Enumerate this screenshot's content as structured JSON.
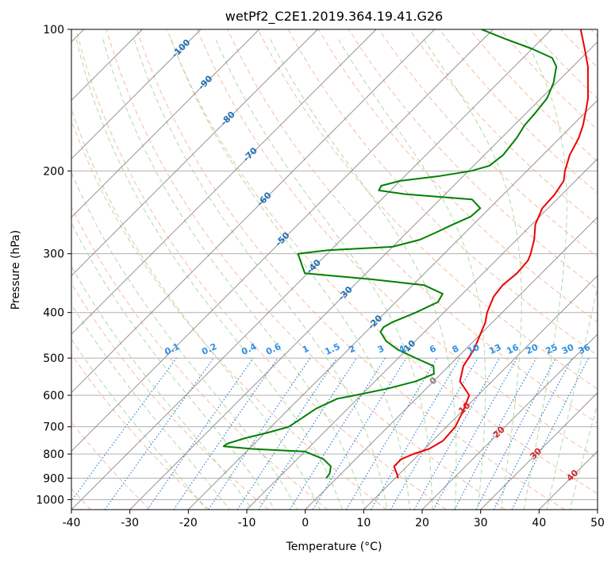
{
  "chart_data": {
    "type": "skew-t",
    "title": "wetPf2_C2E1.2019.364.19.41.G26",
    "xlabel": "Temperature (°C)",
    "ylabel": "Pressure (hPa)",
    "xlim": [
      -40,
      50
    ],
    "ylim": [
      1050,
      100
    ],
    "y_scale": "log",
    "x_ticks": [
      -40,
      -30,
      -20,
      -10,
      0,
      10,
      20,
      30,
      40,
      50
    ],
    "y_ticks": [
      100,
      200,
      300,
      400,
      500,
      600,
      700,
      800,
      900,
      1000
    ],
    "grid": true,
    "colors": {
      "temperature": "#ee0000",
      "dewpoint": "#008000",
      "dry_adiabat": "#f4a582",
      "moist_adiabat": "#a6d69a",
      "mixing_ratio": "#1f78d1",
      "skewed_isotherm": "#888888",
      "isotherm_label_blue": "#1f6fb4",
      "isotherm_label_red": "#d62728",
      "mixing_label": "#2e8fe6"
    },
    "series": [
      {
        "name": "temperature",
        "points": [
          {
            "p": 900,
            "t": 10.5
          },
          {
            "p": 880,
            "t": 9.5
          },
          {
            "p": 850,
            "t": 7.8
          },
          {
            "p": 820,
            "t": 7.8
          },
          {
            "p": 800,
            "t": 9.0
          },
          {
            "p": 780,
            "t": 10.8
          },
          {
            "p": 750,
            "t": 11.8
          },
          {
            "p": 700,
            "t": 11.5
          },
          {
            "p": 650,
            "t": 10.2
          },
          {
            "p": 600,
            "t": 8.5
          },
          {
            "p": 560,
            "t": 4.5
          },
          {
            "p": 520,
            "t": 2.5
          },
          {
            "p": 480,
            "t": 1.5
          },
          {
            "p": 450,
            "t": 0.2
          },
          {
            "p": 420,
            "t": -1.2
          },
          {
            "p": 400,
            "t": -2.6
          },
          {
            "p": 370,
            "t": -4.2
          },
          {
            "p": 350,
            "t": -4.6
          },
          {
            "p": 330,
            "t": -4.2
          },
          {
            "p": 310,
            "t": -4.5
          },
          {
            "p": 300,
            "t": -5.2
          },
          {
            "p": 280,
            "t": -7.0
          },
          {
            "p": 260,
            "t": -9.4
          },
          {
            "p": 240,
            "t": -11.0
          },
          {
            "p": 225,
            "t": -11.2
          },
          {
            "p": 210,
            "t": -12.0
          },
          {
            "p": 200,
            "t": -13.5
          },
          {
            "p": 185,
            "t": -15.4
          },
          {
            "p": 170,
            "t": -16.8
          },
          {
            "p": 160,
            "t": -18.2
          },
          {
            "p": 150,
            "t": -20.0
          },
          {
            "p": 140,
            "t": -22.0
          },
          {
            "p": 130,
            "t": -24.6
          },
          {
            "p": 120,
            "t": -27.4
          },
          {
            "p": 110,
            "t": -31.0
          },
          {
            "p": 100,
            "t": -35.0
          }
        ]
      },
      {
        "name": "dewpoint",
        "points": [
          {
            "p": 900,
            "t": -1.8
          },
          {
            "p": 880,
            "t": -2.0
          },
          {
            "p": 850,
            "t": -3.0
          },
          {
            "p": 820,
            "t": -5.5
          },
          {
            "p": 790,
            "t": -10.0
          },
          {
            "p": 780,
            "t": -19.5
          },
          {
            "p": 770,
            "t": -24.8
          },
          {
            "p": 760,
            "t": -24.6
          },
          {
            "p": 740,
            "t": -22.5
          },
          {
            "p": 720,
            "t": -19.5
          },
          {
            "p": 700,
            "t": -17.0
          },
          {
            "p": 670,
            "t": -16.2
          },
          {
            "p": 640,
            "t": -15.4
          },
          {
            "p": 610,
            "t": -13.5
          },
          {
            "p": 600,
            "t": -11.0
          },
          {
            "p": 580,
            "t": -6.5
          },
          {
            "p": 560,
            "t": -3.0
          },
          {
            "p": 540,
            "t": -1.2
          },
          {
            "p": 520,
            "t": -2.6
          },
          {
            "p": 500,
            "t": -7.0
          },
          {
            "p": 480,
            "t": -11.5
          },
          {
            "p": 460,
            "t": -15.0
          },
          {
            "p": 440,
            "t": -17.5
          },
          {
            "p": 430,
            "t": -17.8
          },
          {
            "p": 420,
            "t": -17.2
          },
          {
            "p": 400,
            "t": -14.8
          },
          {
            "p": 380,
            "t": -12.8
          },
          {
            "p": 365,
            "t": -13.4
          },
          {
            "p": 350,
            "t": -18.0
          },
          {
            "p": 340,
            "t": -28.0
          },
          {
            "p": 330,
            "t": -40.5
          },
          {
            "p": 300,
            "t": -45.0
          },
          {
            "p": 295,
            "t": -40.5
          },
          {
            "p": 290,
            "t": -30.0
          },
          {
            "p": 280,
            "t": -26.5
          },
          {
            "p": 270,
            "t": -25.0
          },
          {
            "p": 260,
            "t": -23.5
          },
          {
            "p": 250,
            "t": -21.8
          },
          {
            "p": 240,
            "t": -21.6
          },
          {
            "p": 230,
            "t": -24.5
          },
          {
            "p": 224,
            "t": -37.0
          },
          {
            "p": 220,
            "t": -42.0
          },
          {
            "p": 215,
            "t": -42.4
          },
          {
            "p": 210,
            "t": -40.0
          },
          {
            "p": 205,
            "t": -34.0
          },
          {
            "p": 200,
            "t": -29.5
          },
          {
            "p": 195,
            "t": -27.3
          },
          {
            "p": 185,
            "t": -26.8
          },
          {
            "p": 170,
            "t": -27.4
          },
          {
            "p": 160,
            "t": -28.2
          },
          {
            "p": 150,
            "t": -28.5
          },
          {
            "p": 140,
            "t": -29.0
          },
          {
            "p": 130,
            "t": -30.5
          },
          {
            "p": 120,
            "t": -32.8
          },
          {
            "p": 115,
            "t": -35.0
          },
          {
            "p": 110,
            "t": -40.0
          },
          {
            "p": 105,
            "t": -46.0
          },
          {
            "p": 100,
            "t": -52.0
          }
        ]
      }
    ],
    "isotherm_labels": [
      {
        "text": "-100",
        "t": -100,
        "p": 110
      },
      {
        "text": "-90",
        "t": -90,
        "p": 130
      },
      {
        "text": "-80",
        "t": -80,
        "p": 155
      },
      {
        "text": "-70",
        "t": -70,
        "p": 185
      },
      {
        "text": "-60",
        "t": -60,
        "p": 230
      },
      {
        "text": "-50",
        "t": -50,
        "p": 280
      },
      {
        "text": "-40",
        "t": -40,
        "p": 320
      },
      {
        "text": "-30",
        "t": -30,
        "p": 365
      },
      {
        "text": "-20",
        "t": -20,
        "p": 420
      },
      {
        "text": "-10",
        "t": -10,
        "p": 475
      },
      {
        "text": "0",
        "t": 0,
        "p": 560
      },
      {
        "text": "10",
        "t": 10,
        "p": 640
      },
      {
        "text": "20",
        "t": 20,
        "p": 720
      },
      {
        "text": "30",
        "t": 30,
        "p": 800
      },
      {
        "text": "40",
        "t": 40,
        "p": 890
      }
    ],
    "mixing_ratio_labels": [
      "0.1",
      "0.2",
      "0.4",
      "0.6",
      "1",
      "1.5",
      "2",
      "3",
      "4",
      "6",
      "8",
      "10",
      "13",
      "16",
      "20",
      "25",
      "30",
      "36"
    ],
    "mixing_ratio_values": [
      0.1,
      0.2,
      0.4,
      0.6,
      1,
      1.5,
      2,
      3,
      4,
      6,
      8,
      10,
      13,
      16,
      20,
      25,
      30,
      36
    ],
    "mixing_ratio_label_pressure": 500
  }
}
